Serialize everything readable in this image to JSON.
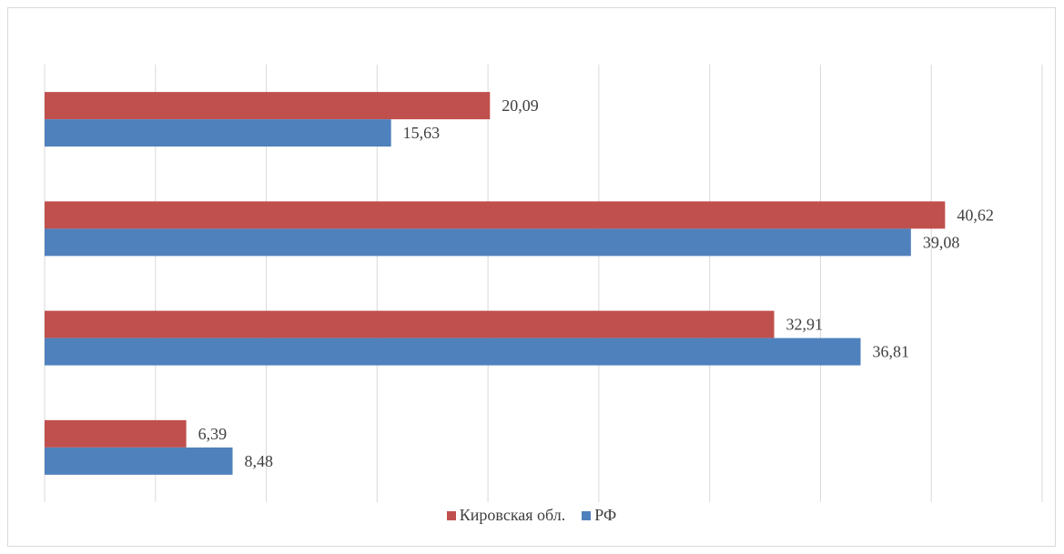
{
  "chart_data": {
    "type": "bar",
    "orientation": "horizontal",
    "categories": [
      "",
      "",
      "",
      ""
    ],
    "series": [
      {
        "name": "Кировская обл.",
        "color": "#c0504d",
        "values": [
          20.09,
          40.62,
          32.91,
          6.39
        ],
        "labels": [
          "20,09",
          "40,62",
          "32,91",
          "6,39"
        ]
      },
      {
        "name": "РФ",
        "color": "#4f81bd",
        "values": [
          15.63,
          39.08,
          36.81,
          8.48
        ],
        "labels": [
          "15,63",
          "39,08",
          "36,81",
          "8,48"
        ]
      }
    ],
    "xlim": [
      0,
      45
    ],
    "x_gridline_step": 5,
    "grid": true,
    "legend_position": "bottom",
    "title": "",
    "xlabel": "",
    "ylabel": ""
  }
}
